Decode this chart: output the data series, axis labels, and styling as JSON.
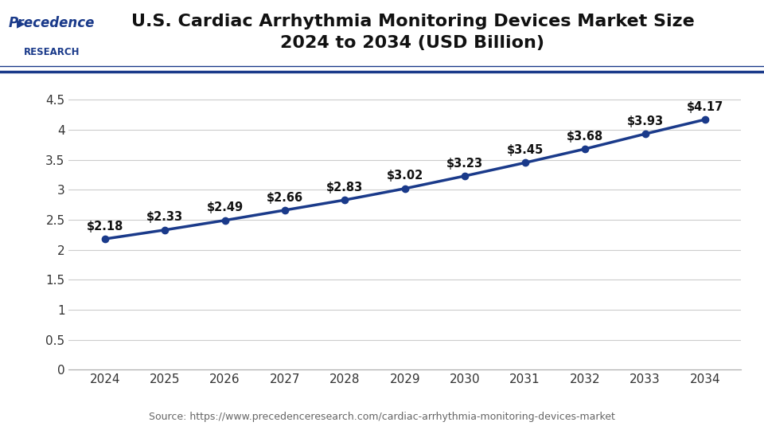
{
  "title_line1": "U.S. Cardiac Arrhythmia Monitoring Devices Market Size",
  "title_line2": "2024 to 2034 (USD Billion)",
  "years": [
    2024,
    2025,
    2026,
    2027,
    2028,
    2029,
    2030,
    2031,
    2032,
    2033,
    2034
  ],
  "values": [
    2.18,
    2.33,
    2.49,
    2.66,
    2.83,
    3.02,
    3.23,
    3.45,
    3.68,
    3.93,
    4.17
  ],
  "labels": [
    "$2.18",
    "$2.33",
    "$2.49",
    "$2.66",
    "$2.83",
    "$3.02",
    "$$3.23",
    "$3.45",
    "$3.68",
    "$3.93",
    "$4.17"
  ],
  "labels_clean": [
    "$2.18",
    "$2.33",
    "$2.49",
    "$2.66",
    "$2.83",
    "$3.02",
    "$3.23",
    "$3.45",
    "$3.68",
    "$3.93",
    "$4.17"
  ],
  "line_color": "#1a3a8a",
  "marker_color": "#1a3a8a",
  "ylim": [
    0,
    4.8
  ],
  "yticks": [
    0,
    0.5,
    1.0,
    1.5,
    2.0,
    2.5,
    3.0,
    3.5,
    4.0,
    4.5
  ],
  "grid_color": "#cccccc",
  "bg_color": "#ffffff",
  "source_text": "Source: https://www.precedenceresearch.com/cardiac-arrhythmia-monitoring-devices-market",
  "title_fontsize": 16,
  "tick_fontsize": 11,
  "label_fontsize": 10.5,
  "source_fontsize": 9,
  "header_border_color": "#1a3a8a",
  "logo_text_precedence": "Precedence",
  "logo_text_research": "RESEARCH",
  "logo_color": "#1a3a8a",
  "text_color": "#111111",
  "axis_color": "#333333",
  "spine_color": "#aaaaaa"
}
